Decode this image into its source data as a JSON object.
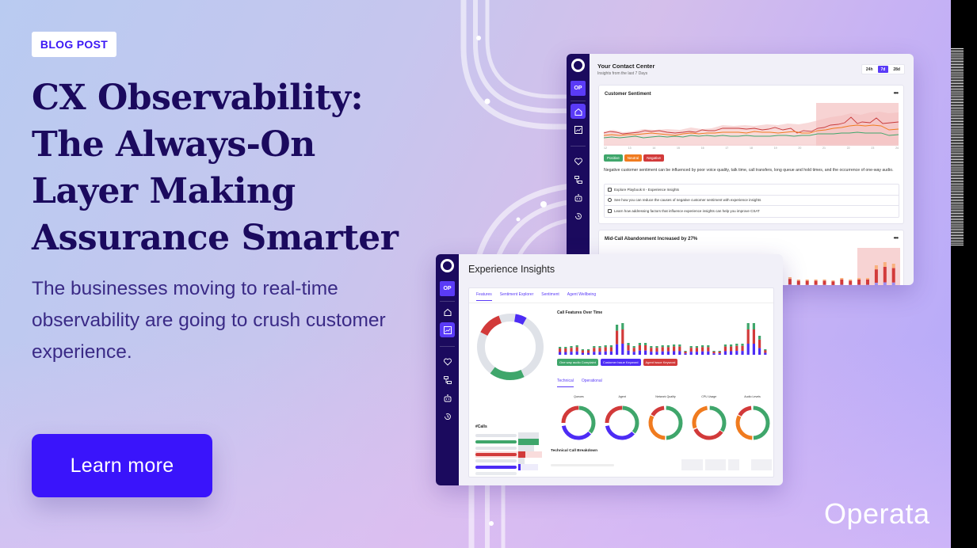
{
  "badge": "BLOG POST",
  "headline": [
    "CX Observability:",
    "The Always-On",
    "Layer Making",
    "Assurance Smarter"
  ],
  "subhead": "The businesses moving to real-time observability are going to crush customer experience.",
  "cta": "Learn more",
  "brand": "Operata",
  "colors": {
    "accent": "#3a14fb",
    "navy": "#1b0a5e",
    "positive": "#3fa66b",
    "neutral": "#f07b1f",
    "negative": "#d23a3a",
    "customer_issue": "#4d2cf5"
  },
  "contact_center": {
    "rail": {
      "avatar": "OP",
      "icons": [
        "home-icon",
        "dashboard-icon",
        "heartbeat-icon",
        "flow-icon",
        "bot-icon",
        "history-icon"
      ]
    },
    "title": "Your Contact Center",
    "subtitle": "Insights from the last 7 Days",
    "range_options": [
      "24h",
      "7d",
      "28d"
    ],
    "range_selected": "7d",
    "sentiment_card": {
      "title": "Customer Sentiment",
      "menu": "•••",
      "x_ticks": [
        "12",
        "13",
        "14",
        "15",
        "16",
        "17",
        "18",
        "19",
        "20",
        "21",
        "22",
        "23",
        "24"
      ],
      "legend": [
        "Positive",
        "Neutral",
        "Negative"
      ],
      "description": "Negative customer sentiment can be influenced by poor voice quality, talk time, call transfers, long queue and hold times, and the occurrence of one-way audio.",
      "links": [
        "Explore Playbook 8 - Experience Insights",
        "See how you can reduce the causes of negative customer sentiment with experience insights",
        "Learn how addressing factors that influence experience insights can help you improve CSAT"
      ]
    },
    "abandon_card": {
      "title": "Mid-Call Abandonment Increased by 27%",
      "menu": "•••"
    }
  },
  "experience_insights": {
    "rail": {
      "avatar": "OP",
      "icons": [
        "home-icon",
        "dashboard-icon",
        "heartbeat-icon",
        "flow-icon",
        "bot-icon",
        "history-icon"
      ]
    },
    "title": "Experience Insights",
    "tabs": [
      "Features",
      "Sentiment Explorer",
      "Sentiment",
      "Agent Wellbeing"
    ],
    "active_tab": "Features",
    "chart_title": "Call Features Over Time",
    "chart_legend": [
      "One way audio Complaint",
      "Customer Issue Keyword",
      "Agent Issue Keyword"
    ],
    "sub_tabs": [
      "Technical",
      "Operational"
    ],
    "active_sub_tab": "Technical",
    "donuts": [
      "Queues",
      "Agent",
      "Network Quality",
      "CPU Usage",
      "Audio Levels"
    ],
    "calls_label": "#Calls",
    "breakdown_title": "Technical Call Breakdown"
  }
}
